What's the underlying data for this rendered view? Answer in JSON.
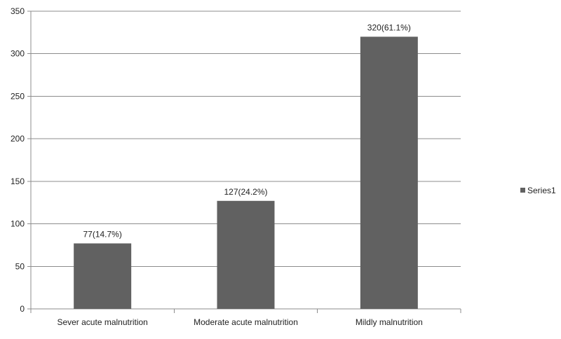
{
  "chart_data": {
    "type": "bar",
    "title": "",
    "xlabel": "",
    "ylabel": "",
    "categories": [
      "Sever acute malnutrition",
      "Moderate acute malnutrition",
      "Mildly malnutrition"
    ],
    "series": [
      {
        "name": "Series1",
        "values": [
          77,
          127,
          320
        ],
        "data_labels": [
          "77(14.7%)",
          "127(24.2%)",
          "320(61.1%)"
        ],
        "color": "#616161"
      }
    ],
    "ylim": [
      0,
      350
    ],
    "yticks": [
      0,
      50,
      100,
      150,
      200,
      250,
      300,
      350
    ],
    "grid": true,
    "legend": "right"
  }
}
